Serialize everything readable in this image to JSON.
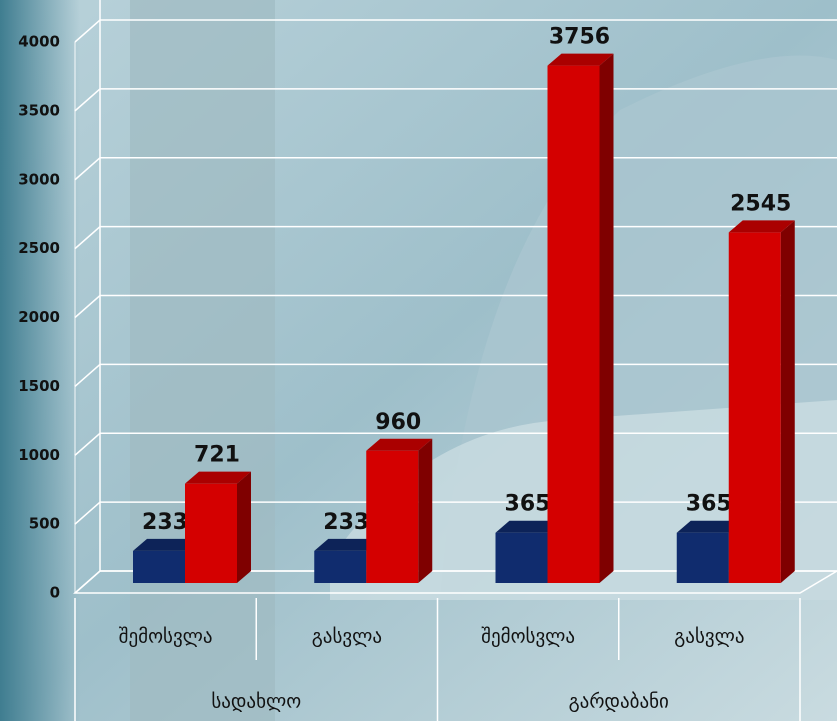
{
  "chart_data": {
    "type": "bar",
    "categories": [
      "შემოსვლა",
      "გასვლა",
      "შემოსვლა",
      "გასვლა"
    ],
    "category_groups": [
      "სადახლო",
      "გარდაბანი"
    ],
    "series": [
      {
        "color": "#102c6e",
        "values": [
          233,
          233,
          365,
          365
        ]
      },
      {
        "color": "#d40000",
        "values": [
          721,
          960,
          3756,
          2545
        ]
      }
    ],
    "ylim": [
      0,
      4000
    ],
    "yticks": [
      0,
      500,
      1000,
      1500,
      2000,
      2500,
      3000,
      3500,
      4000
    ],
    "grid": true,
    "data_labels": true
  }
}
